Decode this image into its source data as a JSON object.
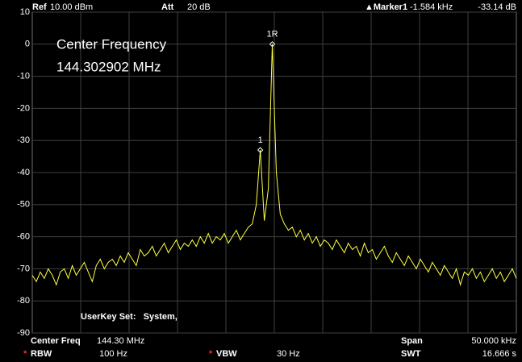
{
  "header": {
    "ref_label": "Ref",
    "ref_value": "10.00 dBm",
    "att_label": "Att",
    "att_value": "20 dB",
    "marker_label": "▲Marker1",
    "marker_freq": "-1.584 kHz",
    "marker_level": "-33.14 dB"
  },
  "overlay": {
    "line1": "Center Frequency",
    "line2": "144.302902 MHz",
    "userkey": "UserKey Set:   System,"
  },
  "footer": {
    "center_label": "Center Freq",
    "center_value": "144.30 MHz",
    "span_label": "Span",
    "span_value": "50.000 kHz",
    "rbw_star": "*",
    "rbw_label": "RBW",
    "rbw_value": "100 Hz",
    "vbw_star": "*",
    "vbw_label": "VBW",
    "vbw_value": "30 Hz",
    "swt_label": "SWT",
    "swt_value": "16.666 s"
  },
  "chart_data": {
    "type": "line",
    "color": "#ffff40",
    "grid": true,
    "ylim": [
      -90,
      10
    ],
    "yticks": [
      10,
      0,
      -10,
      -20,
      -30,
      -40,
      -50,
      -60,
      -70,
      -80,
      -90
    ],
    "values": [
      -72,
      -74,
      -71,
      -73,
      -70,
      -72,
      -75,
      -71,
      -70,
      -73,
      -69,
      -72,
      -70,
      -68,
      -71,
      -74,
      -69,
      -67,
      -70,
      -68,
      -67,
      -69,
      -66,
      -68,
      -65,
      -67,
      -69,
      -64,
      -66,
      -65,
      -63,
      -66,
      -64,
      -62,
      -65,
      -63,
      -61,
      -64,
      -62,
      -63,
      -61,
      -63,
      -60,
      -62,
      -59,
      -62,
      -60,
      -61,
      -59,
      -62,
      -60,
      -58,
      -61,
      -59,
      -57,
      -56,
      -50,
      -33,
      -55,
      -45,
      0,
      -40,
      -53,
      -56,
      -58,
      -57,
      -60,
      -58,
      -61,
      -59,
      -62,
      -60,
      -63,
      -61,
      -62,
      -64,
      -61,
      -63,
      -65,
      -62,
      -64,
      -63,
      -66,
      -62,
      -65,
      -64,
      -67,
      -65,
      -63,
      -66,
      -68,
      -65,
      -67,
      -69,
      -66,
      -68,
      -70,
      -67,
      -69,
      -71,
      -68,
      -70,
      -72,
      -69,
      -71,
      -73,
      -70,
      -75,
      -71,
      -72,
      -70,
      -73,
      -71,
      -74,
      -72,
      -70,
      -73,
      -71,
      -74,
      -72,
      -70,
      -73
    ],
    "markers": [
      {
        "label": "1R",
        "at": 60
      },
      {
        "label": "1",
        "at": 57
      }
    ]
  }
}
